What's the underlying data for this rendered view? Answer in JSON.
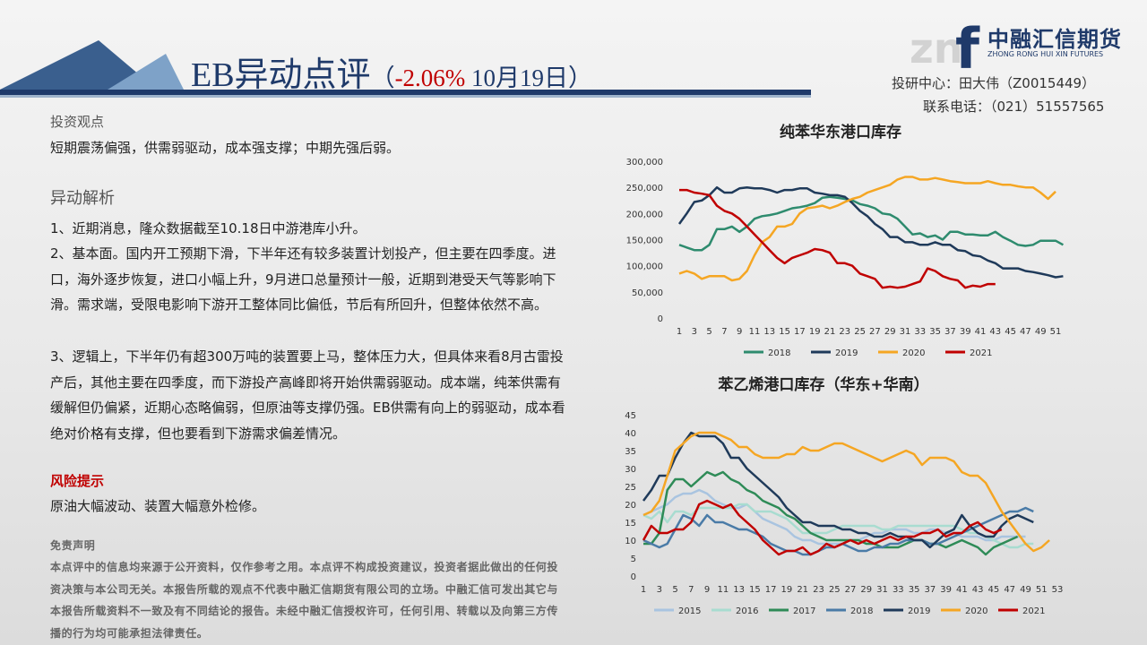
{
  "header": {
    "title": "EB异动点评",
    "bracket_open": "（",
    "change": "-2.06%",
    "date": "10月19日",
    "bracket_close": "）"
  },
  "logo": {
    "name": "中融汇信期货",
    "english": "ZHONG RONG HUI XIN FUTURES"
  },
  "contact": {
    "analyst": "投研中心：田大伟（Z0015449）",
    "phone": "联系电话：（021）51557565"
  },
  "view": {
    "heading": "投资观点",
    "text": "短期震荡偏强，供需弱驱动，成本强支撑；中期先强后弱。"
  },
  "analysis": {
    "heading": "异动解析",
    "paragraphs": [
      "1、近期消息，隆众数据截至10.18日中游港库小升。",
      "2、基本面。国内开工预期下滑，下半年还有较多装置计划投产，但主要在四季度。进口，海外逐步恢复，进口小幅上升，9月进口总量预计一般，近期到港受天气等影响下滑。需求端，受限电影响下游开工整体同比偏低，节后有所回升，但整体依然不高。",
      "3、逻辑上，下半年仍有超300万吨的装置要上马，整体压力大，但具体来看8月古雷投产后，其他主要在四季度，而下游投产高峰即将开始供需弱驱动。成本端，纯苯供需有缓解但仍偏紧，近期心态略偏弱，但原油等支撑仍强。EB供需有向上的弱驱动，成本看绝对价格有支撑，但也要看到下游需求偏差情况。"
    ]
  },
  "risk": {
    "heading": "风险提示",
    "text": "原油大幅波动、装置大幅意外检修。"
  },
  "disclaimer": {
    "heading": "免责声明",
    "text": "本点评中的信息均来源于公开资料，仅作参考之用。本点评不构成投资建议，投资者据此做出的任何投资决策与本公司无关。本报告所载的观点不代表中融汇信期货有限公司的立场。中融汇信可发出其它与本报告所载资料不一致及有不同结论的报告。未经中融汇信授权许可，任何引用、转载以及向第三方传播的行为均可能承担法律责任。"
  },
  "chart_data": [
    {
      "type": "line",
      "title": "纯苯华东港口库存",
      "grid": false,
      "legend": "bottom",
      "categories": [
        1,
        null,
        3,
        null,
        5,
        null,
        7,
        null,
        9,
        null,
        11,
        null,
        13,
        null,
        15,
        null,
        17,
        null,
        19,
        null,
        21,
        null,
        23,
        null,
        25,
        null,
        27,
        null,
        29,
        null,
        31,
        null,
        33,
        null,
        35,
        null,
        37,
        null,
        39,
        null,
        41,
        null,
        43,
        null,
        45,
        null,
        47,
        null,
        49,
        null,
        51,
        null
      ],
      "ylim": [
        0,
        300000
      ],
      "yticks": [
        0,
        {
          "value": 50000,
          "label": "50,000"
        },
        {
          "value": 100000,
          "label": "100,000"
        },
        {
          "value": 150000,
          "label": "150,000"
        },
        {
          "value": 200000,
          "label": "200,000"
        },
        {
          "value": 250000,
          "label": "250,000"
        },
        {
          "value": 300000,
          "label": "300,000"
        }
      ],
      "series": [
        {
          "name": "2018",
          "color": "#2e8b6e",
          "values": [
            140000,
            135000,
            130000,
            130000,
            140000,
            170000,
            170000,
            175000,
            165000,
            175000,
            190000,
            195000,
            197000,
            200000,
            205000,
            210000,
            212000,
            215000,
            220000,
            230000,
            232000,
            230000,
            228000,
            225000,
            218000,
            215000,
            210000,
            200000,
            198000,
            190000,
            175000,
            160000,
            162000,
            155000,
            158000,
            150000,
            165000,
            165000,
            160000,
            160000,
            158000,
            158000,
            165000,
            155000,
            148000,
            140000,
            138000,
            140000,
            148000,
            148000,
            148000,
            140000
          ]
        },
        {
          "name": "2019",
          "color": "#1f3a5a",
          "values": [
            180000,
            200000,
            222000,
            225000,
            235000,
            250000,
            240000,
            240000,
            248000,
            250000,
            248000,
            248000,
            245000,
            240000,
            245000,
            245000,
            248000,
            248000,
            240000,
            238000,
            235000,
            235000,
            232000,
            220000,
            205000,
            195000,
            180000,
            170000,
            155000,
            155000,
            145000,
            145000,
            140000,
            140000,
            145000,
            140000,
            140000,
            130000,
            128000,
            120000,
            118000,
            110000,
            105000,
            95000,
            95000,
            95000,
            90000,
            88000,
            85000,
            82000,
            78000,
            80000
          ]
        },
        {
          "name": "2020",
          "color": "#f5a623",
          "values": [
            85000,
            90000,
            85000,
            75000,
            80000,
            80000,
            80000,
            72000,
            75000,
            90000,
            120000,
            145000,
            155000,
            175000,
            175000,
            180000,
            200000,
            210000,
            212000,
            215000,
            210000,
            215000,
            222000,
            228000,
            232000,
            240000,
            245000,
            250000,
            255000,
            265000,
            270000,
            270000,
            265000,
            265000,
            268000,
            265000,
            262000,
            260000,
            258000,
            258000,
            258000,
            262000,
            258000,
            255000,
            255000,
            252000,
            250000,
            250000,
            240000,
            228000,
            242000,
            null
          ]
        },
        {
          "name": "2021",
          "color": "#c00000",
          "values": [
            245000,
            245000,
            240000,
            238000,
            235000,
            215000,
            205000,
            200000,
            190000,
            175000,
            160000,
            145000,
            130000,
            115000,
            105000,
            115000,
            120000,
            125000,
            132000,
            130000,
            125000,
            105000,
            105000,
            100000,
            85000,
            80000,
            75000,
            58000,
            60000,
            58000,
            60000,
            65000,
            70000,
            95000,
            90000,
            80000,
            75000,
            72000,
            58000,
            62000,
            60000,
            65000,
            65000,
            null,
            null,
            null,
            null,
            null,
            null,
            null,
            null,
            null
          ]
        }
      ]
    },
    {
      "type": "line",
      "title": "苯乙烯港口库存（华东+华南）",
      "grid": false,
      "legend": "bottom",
      "categories": [
        1,
        null,
        3,
        null,
        5,
        null,
        7,
        null,
        9,
        null,
        11,
        null,
        13,
        null,
        15,
        null,
        17,
        null,
        19,
        null,
        21,
        null,
        23,
        null,
        25,
        null,
        27,
        null,
        29,
        null,
        31,
        null,
        33,
        null,
        35,
        null,
        37,
        null,
        39,
        null,
        41,
        null,
        43,
        null,
        45,
        null,
        47,
        null,
        49,
        null,
        51,
        null,
        53
      ],
      "ylim": [
        0,
        45
      ],
      "yticks": [
        0,
        5,
        10,
        15,
        20,
        25,
        30,
        35,
        40,
        45
      ],
      "series": [
        {
          "name": "2015",
          "color": "#a9c4e0",
          "values": [
            17,
            18,
            19,
            20,
            22,
            23,
            23,
            24,
            23,
            21,
            20,
            19,
            19,
            20,
            18,
            16,
            15,
            14,
            13,
            11,
            10,
            10,
            9,
            9,
            9,
            9,
            10,
            10,
            11,
            12,
            12,
            13,
            13,
            13,
            12,
            12,
            13,
            13,
            12,
            12,
            11,
            11,
            11,
            10,
            10,
            11,
            11,
            11,
            11,
            null,
            null,
            null,
            null
          ]
        },
        {
          "name": "2016",
          "color": "#a8dcd0",
          "values": [
            17,
            16,
            18,
            15,
            18,
            18,
            17,
            19,
            19,
            19,
            19,
            19,
            20,
            20,
            18,
            18,
            18,
            17,
            16,
            14,
            12,
            12,
            12,
            12,
            13,
            14,
            14,
            14,
            14,
            14,
            13,
            13,
            14,
            14,
            14,
            14,
            14,
            14,
            14,
            14,
            13,
            12,
            12,
            11,
            10,
            9,
            8,
            8,
            9,
            9,
            null,
            null,
            null
          ]
        },
        {
          "name": "2017",
          "color": "#2e8b57",
          "values": [
            9,
            9,
            12,
            24,
            27,
            27,
            25,
            27,
            29,
            28,
            29,
            27,
            26,
            24,
            23,
            21,
            20,
            19,
            17,
            16,
            14,
            12,
            11,
            10,
            10,
            10,
            10,
            10,
            9,
            9,
            8,
            8,
            8,
            9,
            10,
            10,
            9,
            9,
            8,
            9,
            10,
            9,
            8,
            6,
            8,
            9,
            10,
            11,
            null,
            null,
            null,
            null,
            null
          ]
        },
        {
          "name": "2018",
          "color": "#4a7ba7",
          "values": [
            10,
            9,
            8,
            9,
            13,
            17,
            16,
            14,
            17,
            15,
            15,
            14,
            13,
            13,
            12,
            11,
            9,
            8,
            7,
            7,
            6,
            6,
            7,
            8,
            8,
            9,
            8,
            7,
            7,
            8,
            8,
            9,
            9,
            10,
            10,
            10,
            9,
            9,
            10,
            11,
            12,
            13,
            14,
            15,
            16,
            17,
            18,
            18,
            19,
            18,
            null,
            null,
            null
          ]
        },
        {
          "name": "2019",
          "color": "#1f3a5a",
          "values": [
            21,
            24,
            28,
            28,
            33,
            37,
            40,
            39,
            39,
            39,
            37,
            33,
            33,
            30,
            28,
            26,
            24,
            22,
            19,
            17,
            15,
            15,
            14,
            14,
            14,
            13,
            13,
            12,
            12,
            11,
            11,
            12,
            11,
            11,
            10,
            10,
            8,
            10,
            12,
            13,
            17,
            14,
            12,
            11,
            11,
            14,
            16,
            17,
            16,
            15,
            null,
            null,
            null
          ]
        },
        {
          "name": "2020",
          "color": "#f5a623",
          "values": [
            17,
            18,
            21,
            28,
            35,
            37,
            39,
            40,
            40,
            40,
            39,
            38,
            36,
            36,
            34,
            33,
            33,
            33,
            34,
            34,
            36,
            35,
            35,
            36,
            37,
            37,
            36,
            35,
            34,
            33,
            32,
            33,
            34,
            35,
            34,
            31,
            33,
            33,
            33,
            32,
            29,
            28,
            28,
            26,
            22,
            18,
            15,
            12,
            9,
            7,
            8,
            10,
            null
          ]
        },
        {
          "name": "2021",
          "color": "#c00000",
          "values": [
            10,
            14,
            12,
            12,
            13,
            13,
            15,
            20,
            21,
            20,
            19,
            20,
            17,
            15,
            13,
            10,
            8,
            6,
            7,
            7,
            8,
            6,
            7,
            9,
            8,
            9,
            10,
            9,
            10,
            9,
            10,
            11,
            10,
            11,
            11,
            12,
            12,
            13,
            11,
            12,
            12,
            14,
            15,
            13,
            12,
            13,
            null,
            null,
            null,
            null,
            null,
            null,
            null
          ]
        }
      ]
    }
  ]
}
